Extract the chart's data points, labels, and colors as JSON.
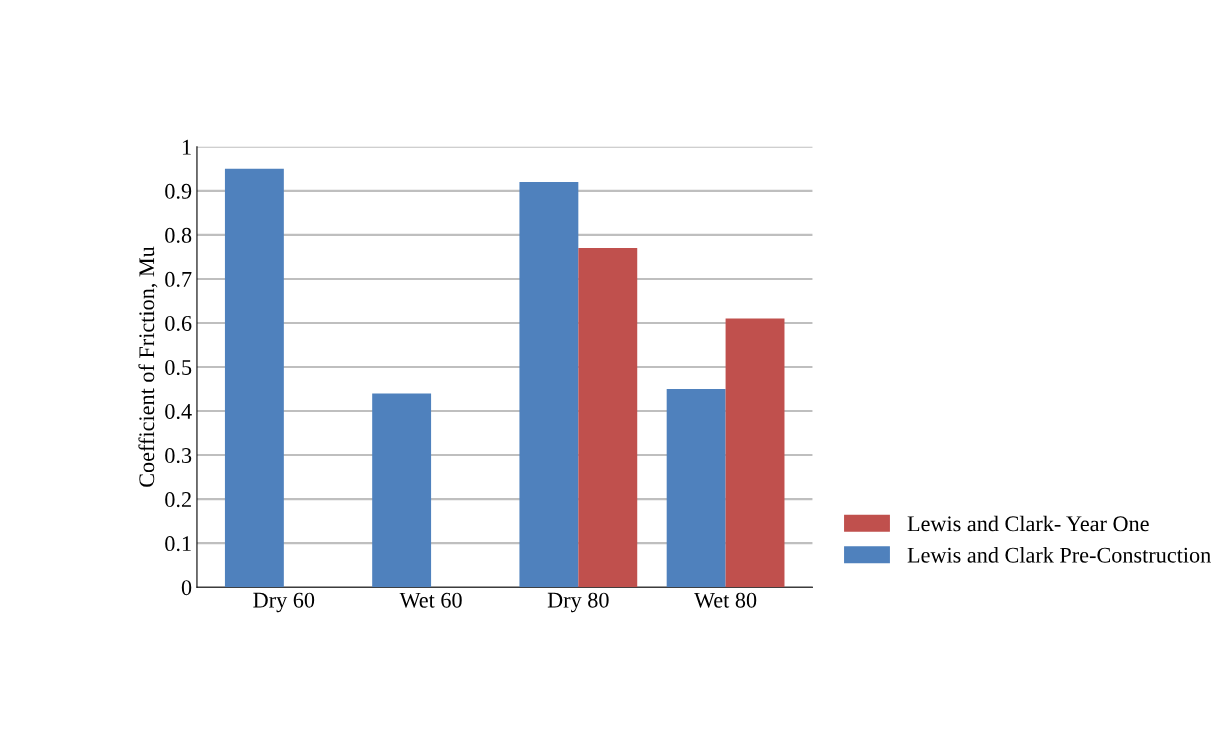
{
  "chart_data": {
    "type": "bar",
    "ylabel": "Coefficient of Friction, Mu",
    "categories": [
      "Dry 60",
      "Wet 60",
      "Dry 80",
      "Wet 80"
    ],
    "series": [
      {
        "name": "Lewis and Clark Pre-Construction",
        "color": "#4f81bd",
        "values": [
          0.95,
          0.44,
          0.92,
          0.45
        ]
      },
      {
        "name": "Lewis and Clark- Year One",
        "color": "#c0504d",
        "values": [
          null,
          null,
          0.77,
          0.61
        ]
      }
    ],
    "ylim": [
      0,
      1
    ],
    "yticks": [
      0,
      0.1,
      0.2,
      0.3,
      0.4,
      0.5,
      0.6,
      0.7,
      0.8,
      0.9,
      1
    ],
    "grid": "y",
    "legend": "bottom right"
  }
}
